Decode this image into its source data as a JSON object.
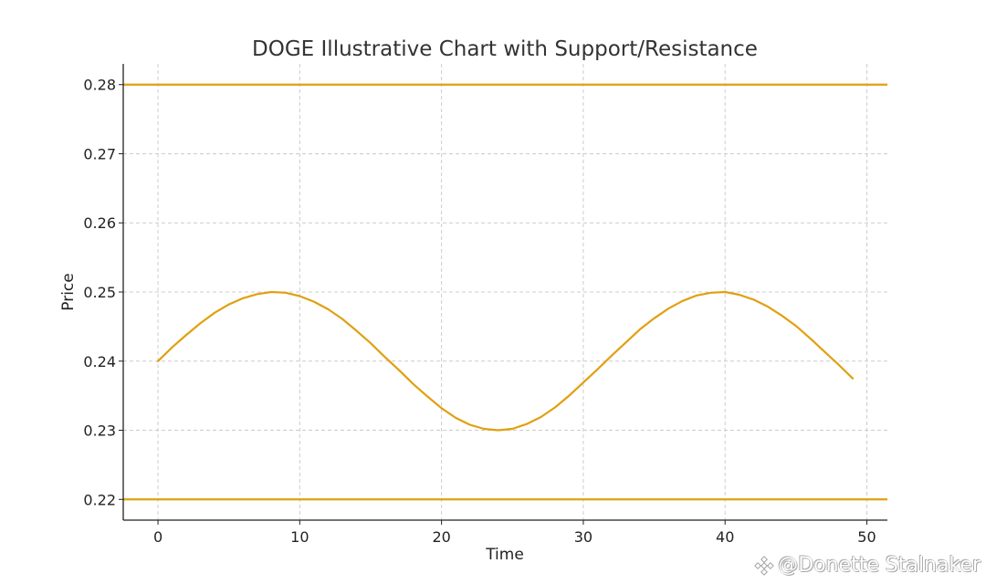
{
  "chart_data": {
    "type": "line",
    "title": "DOGE Illustrative Chart with Support/Resistance",
    "xlabel": "Time",
    "ylabel": "Price",
    "xlim": [
      -2.45,
      51.45
    ],
    "ylim": [
      0.217,
      0.283
    ],
    "x_ticks": [
      0,
      10,
      20,
      30,
      40,
      50
    ],
    "y_ticks": [
      0.22,
      0.23,
      0.24,
      0.25,
      0.26,
      0.27,
      0.28
    ],
    "x_tick_labels": [
      "0",
      "10",
      "20",
      "30",
      "40",
      "50"
    ],
    "y_tick_labels": [
      "0.22",
      "0.23",
      "0.24",
      "0.25",
      "0.26",
      "0.27",
      "0.28"
    ],
    "grid": true,
    "legend": "none",
    "series": [
      {
        "color": "#e0a010",
        "x": [
          0,
          1,
          2,
          3,
          4,
          5,
          6,
          7,
          8,
          9,
          10,
          11,
          12,
          13,
          14,
          15,
          16,
          17,
          18,
          19,
          20,
          21,
          22,
          23,
          24,
          25,
          26,
          27,
          28,
          29,
          30,
          31,
          32,
          33,
          34,
          35,
          36,
          37,
          38,
          39,
          40,
          41,
          42,
          43,
          44,
          45,
          46,
          47,
          48,
          49
        ],
        "y": [
          0.24,
          0.242,
          0.2438,
          0.2455,
          0.247,
          0.2482,
          0.2491,
          0.2497,
          0.25,
          0.2499,
          0.2494,
          0.2486,
          0.2475,
          0.2461,
          0.2444,
          0.2426,
          0.2406,
          0.2387,
          0.2367,
          0.2349,
          0.2332,
          0.2318,
          0.2308,
          0.2302,
          0.23,
          0.2302,
          0.2309,
          0.2319,
          0.2333,
          0.235,
          0.2369,
          0.2388,
          0.2408,
          0.2427,
          0.2446,
          0.2462,
          0.2476,
          0.2487,
          0.2495,
          0.2499,
          0.25,
          0.2496,
          0.2489,
          0.2479,
          0.2466,
          0.2451,
          0.2433,
          0.2414,
          0.2395,
          0.2375
        ]
      }
    ],
    "hlines": [
      {
        "name": "Resistance",
        "y": 0.28,
        "color": "#e0a010"
      },
      {
        "name": "Support",
        "y": 0.22,
        "color": "#e0a010"
      }
    ]
  },
  "watermark": {
    "text": "@Donette Stalnaker",
    "icon": "binance-square-logo-icon"
  }
}
